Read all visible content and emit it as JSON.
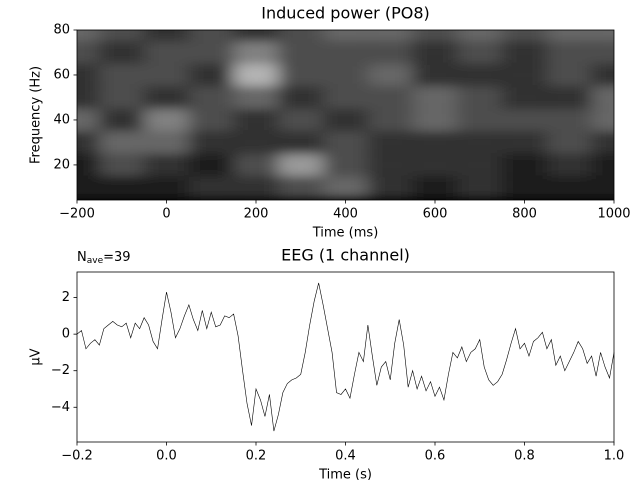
{
  "chart_data": [
    {
      "type": "heatmap",
      "title": "Induced power (PO8)",
      "xlabel": "Time (ms)",
      "ylabel": "Frequency (Hz)",
      "colormap": "gray",
      "grid": false,
      "x": [
        -200,
        -100,
        0,
        100,
        200,
        300,
        400,
        500,
        600,
        700,
        800,
        900,
        1000
      ],
      "y": [
        10,
        20,
        30,
        40,
        50,
        60,
        70,
        80
      ],
      "values": [
        [
          0.1,
          0.1,
          0.1,
          0.2,
          0.2,
          0.3,
          0.4,
          0.2,
          0.1,
          0.2,
          0.1,
          0.1,
          0.1
        ],
        [
          0.1,
          0.3,
          0.2,
          0.1,
          0.3,
          0.6,
          0.3,
          0.2,
          0.2,
          0.2,
          0.1,
          0.2,
          0.1
        ],
        [
          0.2,
          0.4,
          0.4,
          0.2,
          0.2,
          0.2,
          0.3,
          0.2,
          0.2,
          0.2,
          0.2,
          0.3,
          0.2
        ],
        [
          0.4,
          0.2,
          0.5,
          0.3,
          0.2,
          0.3,
          0.2,
          0.3,
          0.4,
          0.3,
          0.3,
          0.3,
          0.4
        ],
        [
          0.2,
          0.3,
          0.2,
          0.3,
          0.4,
          0.2,
          0.3,
          0.3,
          0.4,
          0.3,
          0.2,
          0.2,
          0.4
        ],
        [
          0.2,
          0.3,
          0.3,
          0.2,
          0.7,
          0.3,
          0.3,
          0.4,
          0.2,
          0.2,
          0.2,
          0.3,
          0.2
        ],
        [
          0.3,
          0.2,
          0.3,
          0.3,
          0.5,
          0.3,
          0.3,
          0.3,
          0.2,
          0.3,
          0.2,
          0.3,
          0.3
        ],
        [
          0.4,
          0.3,
          0.2,
          0.3,
          0.2,
          0.3,
          0.4,
          0.4,
          0.3,
          0.4,
          0.3,
          0.4,
          0.4
        ]
      ],
      "xlim": [
        -200,
        1000
      ],
      "xticks": [
        {
          "value": -200,
          "label": "−200"
        },
        0,
        200,
        400,
        600,
        800,
        1000
      ],
      "ylim": [
        4.4,
        80
      ],
      "yticks": [
        20,
        40,
        60,
        80
      ]
    },
    {
      "type": "line",
      "title": "EEG (1 channel)",
      "xlabel": "Time (s)",
      "ylabel": "μV",
      "color": "#000000",
      "grid": false,
      "annotation": {
        "symbol": "N",
        "subscript": "ave",
        "text": "=39"
      },
      "x": [
        -0.2,
        -0.19,
        -0.18,
        -0.17,
        -0.16,
        -0.15,
        -0.14,
        -0.13,
        -0.12,
        -0.11,
        -0.1,
        -0.09,
        -0.08,
        -0.07,
        -0.06,
        -0.05,
        -0.04,
        -0.03,
        -0.02,
        -0.01,
        0,
        0.01,
        0.02,
        0.03,
        0.04,
        0.05,
        0.06,
        0.07,
        0.08,
        0.09,
        0.1,
        0.11,
        0.12,
        0.13,
        0.14,
        0.15,
        0.16,
        0.17,
        0.18,
        0.19,
        0.2,
        0.21,
        0.22,
        0.23,
        0.24,
        0.25,
        0.26,
        0.27,
        0.28,
        0.29,
        0.3,
        0.31,
        0.32,
        0.33,
        0.34,
        0.35,
        0.36,
        0.37,
        0.38,
        0.39,
        0.4,
        0.41,
        0.42,
        0.43,
        0.44,
        0.45,
        0.46,
        0.47,
        0.48,
        0.49,
        0.5,
        0.51,
        0.52,
        0.53,
        0.54,
        0.55,
        0.56,
        0.57,
        0.58,
        0.59,
        0.6,
        0.61,
        0.62,
        0.63,
        0.64,
        0.65,
        0.66,
        0.67,
        0.68,
        0.69,
        0.7,
        0.71,
        0.72,
        0.73,
        0.74,
        0.75,
        0.76,
        0.77,
        0.78,
        0.79,
        0.8,
        0.81,
        0.82,
        0.83,
        0.84,
        0.85,
        0.86,
        0.87,
        0.88,
        0.89,
        0.9,
        0.91,
        0.92,
        0.93,
        0.94,
        0.95,
        0.96,
        0.97,
        0.98,
        0.99,
        1.0
      ],
      "values": [
        0,
        0.2,
        -0.8,
        -0.5,
        -0.3,
        -0.6,
        0.3,
        0.5,
        0.7,
        0.5,
        0.4,
        0.6,
        -0.2,
        0.6,
        0.3,
        0.9,
        0.5,
        -0.4,
        -0.8,
        0.8,
        2.3,
        1.2,
        -0.2,
        0.3,
        1.0,
        1.6,
        0.8,
        0.2,
        1.3,
        0.3,
        1.2,
        0.4,
        0.5,
        1.0,
        0.9,
        1.1,
        -0.1,
        -2.0,
        -3.8,
        -5.0,
        -3.0,
        -3.6,
        -4.5,
        -3.3,
        -5.3,
        -4.4,
        -3.2,
        -2.7,
        -2.5,
        -2.4,
        -2.2,
        -1.0,
        0.5,
        1.8,
        2.8,
        1.6,
        0.3,
        -1.0,
        -3.2,
        -3.3,
        -3.0,
        -3.5,
        -2.2,
        -1.0,
        -1.5,
        0.5,
        -1.2,
        -2.8,
        -1.8,
        -1.5,
        -2.5,
        -0.5,
        0.8,
        -0.6,
        -2.9,
        -2.0,
        -3.0,
        -2.3,
        -3.1,
        -2.6,
        -3.4,
        -2.9,
        -3.6,
        -2.2,
        -1.0,
        -1.3,
        -0.7,
        -1.5,
        -1.0,
        -0.8,
        -0.3,
        -1.8,
        -2.5,
        -2.8,
        -2.6,
        -2.2,
        -1.4,
        -0.5,
        0.3,
        -0.8,
        -0.5,
        -1.2,
        -0.4,
        -0.2,
        0.1,
        -0.8,
        -0.3,
        -1.7,
        -1.2,
        -2.0,
        -1.5,
        -1.0,
        -0.4,
        -0.8,
        -1.6,
        -1.2,
        -2.3,
        -1.0,
        -1.8,
        -2.4,
        -1.0
      ],
      "xlim": [
        -0.2,
        1.0
      ],
      "xticks": [
        {
          "value": -0.2,
          "label": "−0.2"
        },
        {
          "value": 0,
          "label": "0.0"
        },
        0.2,
        0.4,
        0.6,
        0.8,
        {
          "value": 1,
          "label": "1.0"
        }
      ],
      "ylim": [
        -5.9,
        3.4
      ],
      "yticks": [
        {
          "value": -4,
          "label": "−4"
        },
        {
          "value": -2,
          "label": "−2"
        },
        0,
        2
      ]
    }
  ]
}
